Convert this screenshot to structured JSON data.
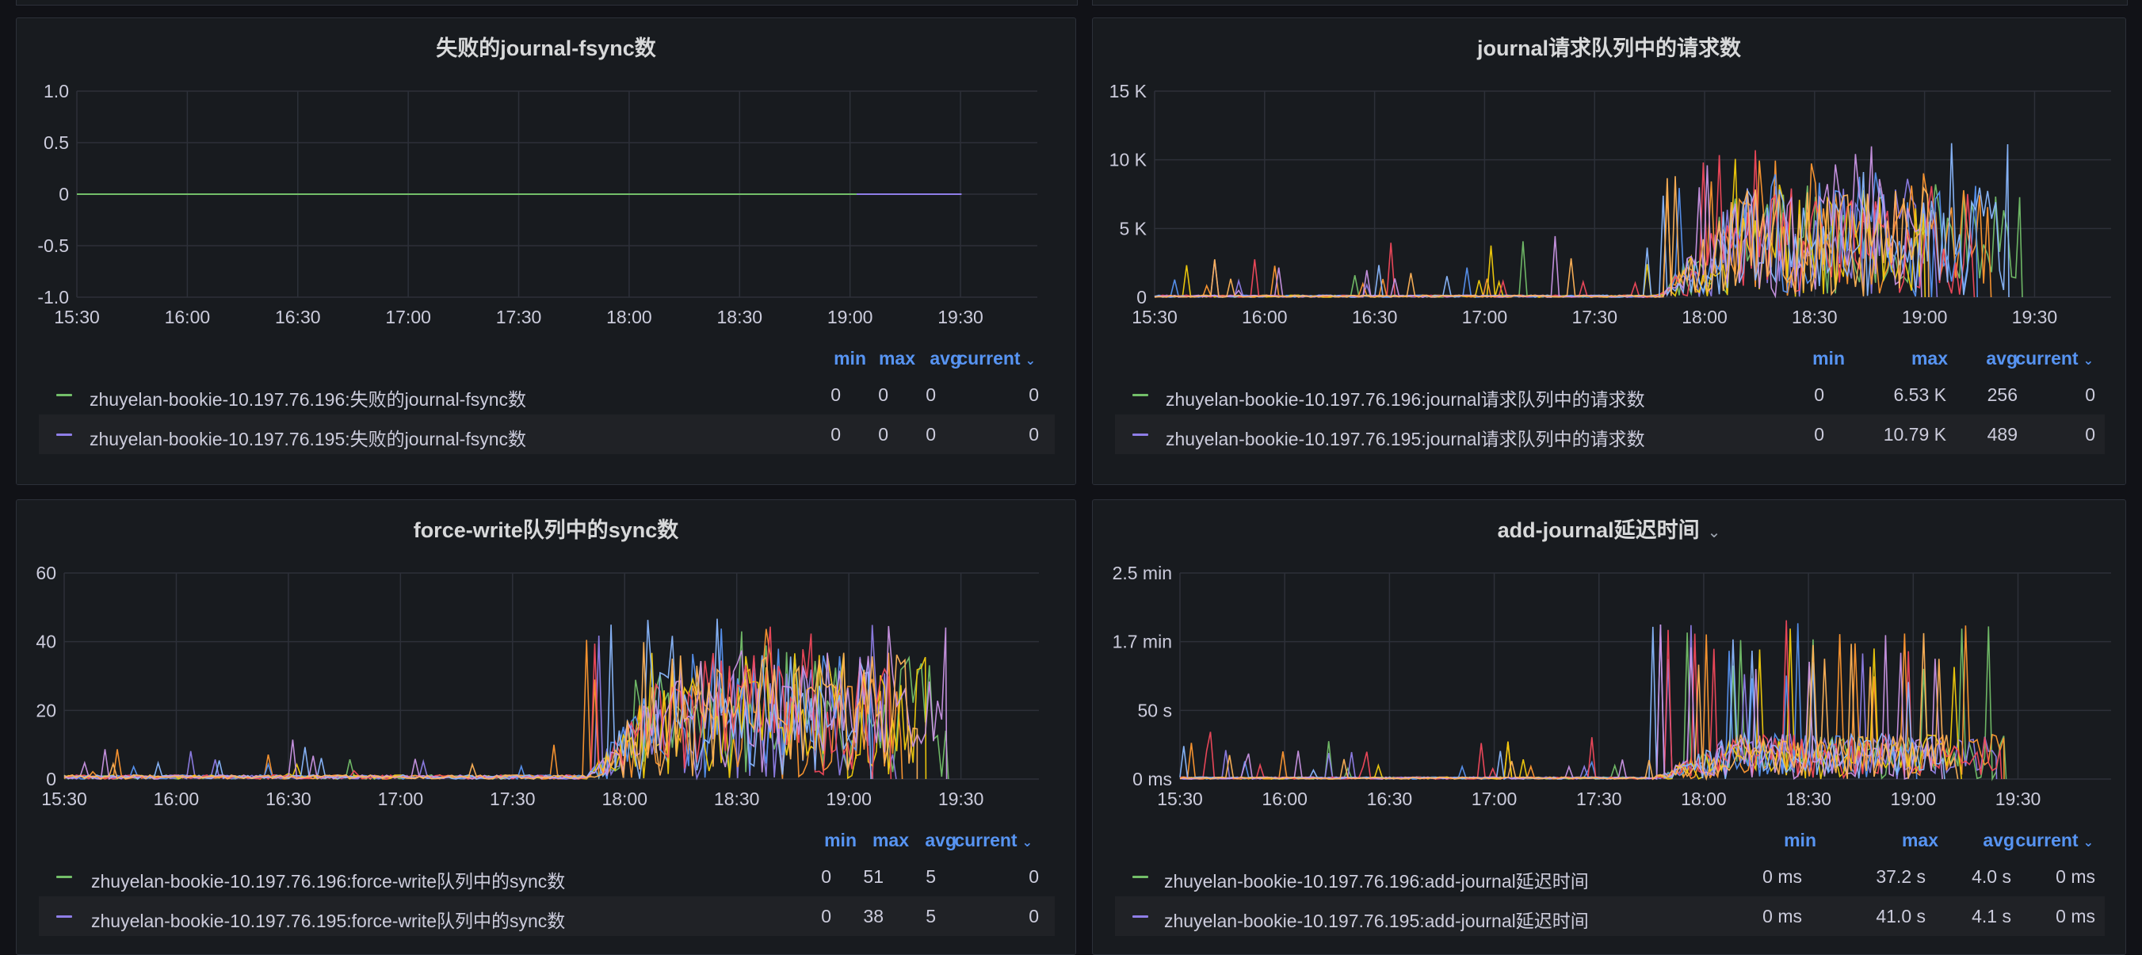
{
  "colors": {
    "series": [
      "#73bf69",
      "#8f7ee8",
      "#ff9830",
      "#5794f2",
      "#f2cc0c",
      "#f2495c",
      "#8ab8ff",
      "#ca95e5",
      "#ffb357",
      "#6ed0e0"
    ],
    "legend_header": "#5794f2"
  },
  "panels": [
    {
      "id": "p1",
      "title": "失败的journal-fsync数",
      "has_menu": false,
      "legend_headers": [
        "min",
        "max",
        "avg",
        "current"
      ],
      "legend_rows": [
        {
          "name": "zhuyelan-bookie-10.197.76.196:失败的journal-fsync数",
          "min": "0",
          "max": "0",
          "avg": "0",
          "current": "0"
        },
        {
          "name": "zhuyelan-bookie-10.197.76.195:失败的journal-fsync数",
          "min": "0",
          "max": "0",
          "avg": "0",
          "current": "0"
        }
      ],
      "chart_data": {
        "type": "line",
        "y_ticks": [
          "1.0",
          "0.5",
          "0",
          "-0.5",
          "-1.0"
        ],
        "x_ticks": [
          "15:30",
          "16:00",
          "16:30",
          "17:00",
          "17:30",
          "18:00",
          "18:30",
          "19:00",
          "19:30"
        ],
        "ylim": [
          -1,
          1
        ],
        "series": [
          {
            "name": "zhuyelan-bookie-10.197.76.196:失败的journal-fsync数",
            "flat": 0
          },
          {
            "name": "zhuyelan-bookie-10.197.76.195:失败的journal-fsync数",
            "flat": 0
          }
        ]
      }
    },
    {
      "id": "p2",
      "title": "journal请求队列中的请求数",
      "has_menu": false,
      "legend_headers": [
        "min",
        "max",
        "avg",
        "current"
      ],
      "legend_rows": [
        {
          "name": "zhuyelan-bookie-10.197.76.196:journal请求队列中的请求数",
          "min": "0",
          "max": "6.53 K",
          "avg": "256",
          "current": "0"
        },
        {
          "name": "zhuyelan-bookie-10.197.76.195:journal请求队列中的请求数",
          "min": "0",
          "max": "10.79 K",
          "avg": "489",
          "current": "0"
        }
      ],
      "chart_data": {
        "type": "line",
        "y_ticks": [
          "15 K",
          "10 K",
          "5 K",
          "0"
        ],
        "x_ticks": [
          "15:30",
          "16:00",
          "16:30",
          "17:00",
          "17:30",
          "18:00",
          "18:30",
          "19:00",
          "19:30"
        ],
        "ylim": [
          0,
          15000
        ]
      }
    },
    {
      "id": "p3",
      "title": "force-write队列中的sync数",
      "has_menu": false,
      "legend_headers": [
        "min",
        "max",
        "avg",
        "current"
      ],
      "legend_rows": [
        {
          "name": "zhuyelan-bookie-10.197.76.196:force-write队列中的sync数",
          "min": "0",
          "max": "51",
          "avg": "5",
          "current": "0"
        },
        {
          "name": "zhuyelan-bookie-10.197.76.195:force-write队列中的sync数",
          "min": "0",
          "max": "38",
          "avg": "5",
          "current": "0"
        }
      ],
      "chart_data": {
        "type": "line",
        "y_ticks": [
          "60",
          "40",
          "20",
          "0"
        ],
        "x_ticks": [
          "15:30",
          "16:00",
          "16:30",
          "17:00",
          "17:30",
          "18:00",
          "18:30",
          "19:00",
          "19:30"
        ],
        "ylim": [
          0,
          60
        ]
      }
    },
    {
      "id": "p4",
      "title": "add-journal延迟时间",
      "has_menu": true,
      "legend_headers": [
        "min",
        "max",
        "avg",
        "current"
      ],
      "legend_rows": [
        {
          "name": "zhuyelan-bookie-10.197.76.196:add-journal延迟时间",
          "min": "0 ms",
          "max": "37.2 s",
          "avg": "4.0 s",
          "current": "0 ms"
        },
        {
          "name": "zhuyelan-bookie-10.197.76.195:add-journal延迟时间",
          "min": "0 ms",
          "max": "41.0 s",
          "avg": "4.1 s",
          "current": "0 ms"
        }
      ],
      "chart_data": {
        "type": "line",
        "y_ticks": [
          "2.5 min",
          "1.7 min",
          "50 s",
          "0 ms"
        ],
        "x_ticks": [
          "15:30",
          "16:00",
          "16:30",
          "17:00",
          "17:30",
          "18:00",
          "18:30",
          "19:00",
          "19:30"
        ],
        "ylim": [
          0,
          150
        ]
      }
    }
  ]
}
